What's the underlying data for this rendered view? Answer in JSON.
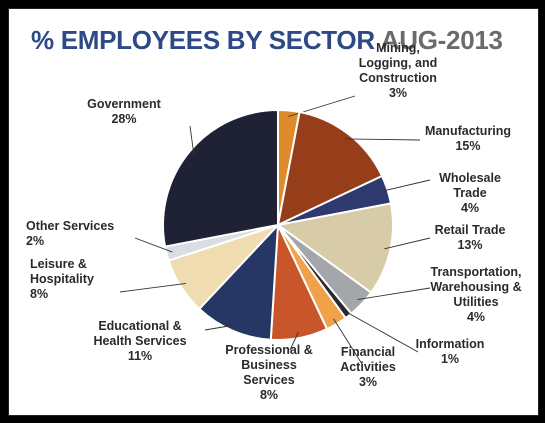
{
  "title": {
    "main": "% EMPLOYEES BY SECTOR",
    "date": "AUG-2013"
  },
  "chart_data": {
    "type": "pie",
    "title": "% EMPLOYEES BY SECTOR AUG-2013",
    "slices": [
      {
        "label_lines": [
          "Mining,",
          "Logging, and",
          "Construction",
          "3%"
        ],
        "value": 3,
        "color": "#e08b2b"
      },
      {
        "label_lines": [
          "Manufacturing",
          "15%"
        ],
        "value": 15,
        "color": "#963d19"
      },
      {
        "label_lines": [
          "Wholesale",
          "Trade",
          "4%"
        ],
        "value": 4,
        "color": "#2e3a6e"
      },
      {
        "label_lines": [
          "Retail Trade",
          "13%"
        ],
        "value": 13,
        "color": "#d7cba8"
      },
      {
        "label_lines": [
          "Transportation,",
          "Warehousing &",
          "Utilities",
          "4%"
        ],
        "value": 4,
        "color": "#a3a6ab"
      },
      {
        "label_lines": [
          "Information",
          "1%"
        ],
        "value": 1,
        "color": "#2a2a2a"
      },
      {
        "label_lines": [
          "Financial",
          "Activities",
          "3%"
        ],
        "value": 3,
        "color": "#f0a24a"
      },
      {
        "label_lines": [
          "Professional &",
          "Business",
          "Services",
          "8%"
        ],
        "value": 8,
        "color": "#c8562a"
      },
      {
        "label_lines": [
          "Educational &",
          "Health Services",
          "11%"
        ],
        "value": 11,
        "color": "#263766"
      },
      {
        "label_lines": [
          "Leisure &",
          "Hospitality",
          "8%"
        ],
        "value": 8,
        "color": "#efdcb0"
      },
      {
        "label_lines": [
          "Other Services",
          "2%"
        ],
        "value": 2,
        "color": "#dadde3"
      },
      {
        "label_lines": [
          "Government",
          "28%"
        ],
        "value": 28,
        "color": "#1f2235"
      }
    ]
  }
}
